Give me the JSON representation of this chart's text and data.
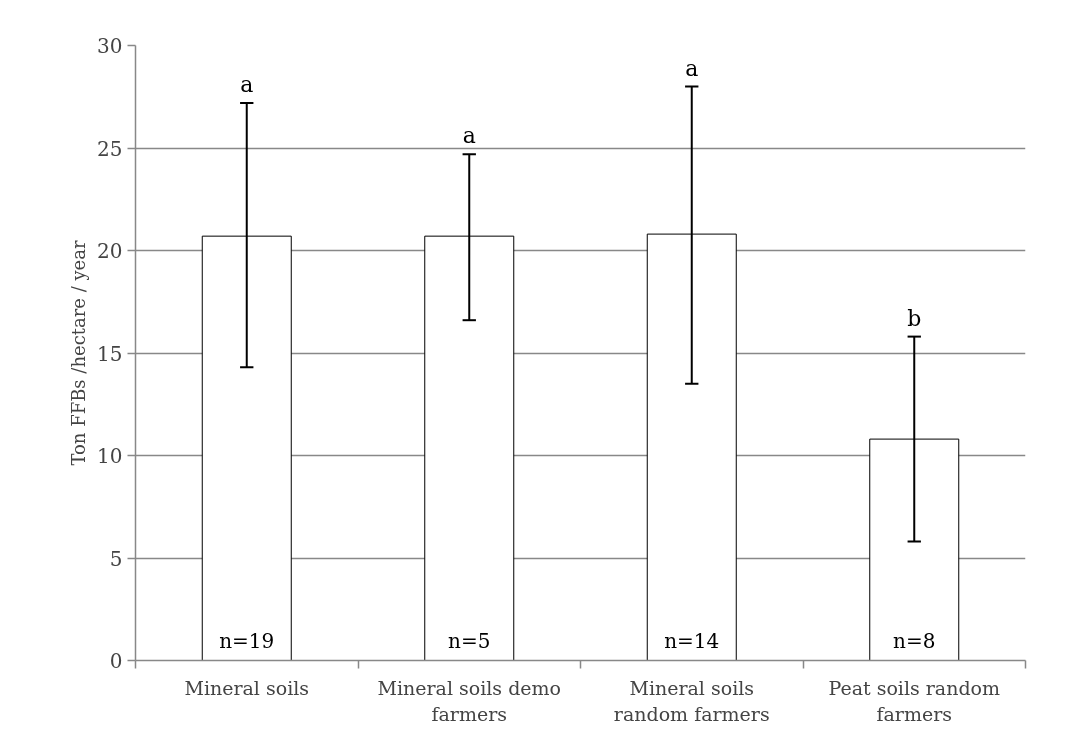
{
  "chart_data": {
    "type": "bar",
    "ylabel": "Ton FFBs /hectare / year",
    "categories": [
      "Mineral soils",
      "Mineral soils demo farmers",
      "Mineral soils random farmers",
      "Peat soils random farmers"
    ],
    "values": [
      20.7,
      20.7,
      20.8,
      10.8
    ],
    "errors": [
      [
        14.3,
        27.2
      ],
      [
        16.6,
        24.7
      ],
      [
        13.5,
        28.0
      ],
      [
        5.8,
        15.8
      ]
    ],
    "color": "#ffffff",
    "ylim": [
      0,
      30
    ],
    "yticks": [
      0,
      5,
      10,
      15,
      20,
      25,
      30
    ],
    "grid": "y",
    "annotations": [
      "a",
      "a",
      "a",
      "b",
      "n=19",
      "n=5",
      "n=14",
      "n=8"
    ]
  }
}
